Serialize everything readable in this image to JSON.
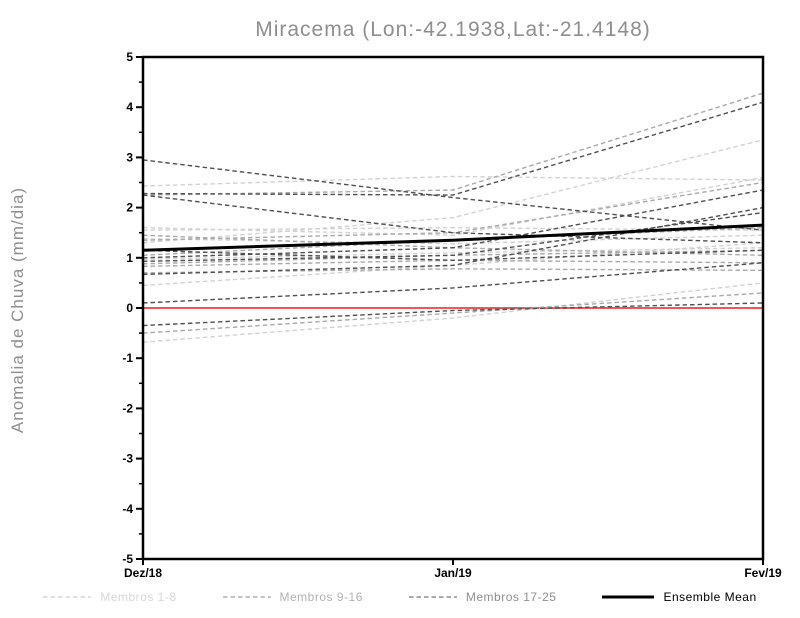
{
  "chart_data": {
    "type": "line",
    "title": "Miracema (Lon:-42.1938,Lat:-21.4148)",
    "ylabel": "Anomalia de Chuva (mm/dia)",
    "xlabel": "",
    "x_categories": [
      "Dez/18",
      "Jan/19",
      "Fev/19"
    ],
    "ylim": [
      -5,
      5
    ],
    "y_major_tick_step": 1,
    "y_minor_tick_step": 0.5,
    "grid": "off",
    "legend_position": "bottom",
    "frame_color": "#000000",
    "tick_label_color": "#000000",
    "title_color": "#8e8e8e",
    "zero_line": {
      "y": 0,
      "color": "#f25555"
    },
    "groups": [
      {
        "name": "Membros 1-8",
        "plot_color": "#d2d2d2",
        "legend_color": "#d7d7d7",
        "style": "dashed"
      },
      {
        "name": "Membros 9-16",
        "plot_color": "#a9a9a9",
        "legend_color": "#b2b2b2",
        "style": "dashed"
      },
      {
        "name": "Membros 17-25",
        "plot_color": "#4f4f4f",
        "legend_color": "#8f8f8f",
        "style": "dashed"
      },
      {
        "name": "Ensemble Mean",
        "plot_color": "#000000",
        "legend_color": "#000000",
        "style": "solid"
      }
    ],
    "series": [
      {
        "group": 0,
        "values": [
          2.43,
          2.62,
          2.55
        ]
      },
      {
        "group": 0,
        "values": [
          1.6,
          1.45,
          2.6
        ]
      },
      {
        "group": 0,
        "values": [
          -0.68,
          -0.2,
          0.5
        ]
      },
      {
        "group": 0,
        "values": [
          0.45,
          0.85,
          1.3
        ]
      },
      {
        "group": 0,
        "values": [
          1.55,
          1.6,
          1.55
        ]
      },
      {
        "group": 0,
        "values": [
          1.3,
          1.8,
          3.35
        ]
      },
      {
        "group": 0,
        "values": [
          0.97,
          1.1,
          1.2
        ]
      },
      {
        "group": 0,
        "values": [
          1.38,
          1.28,
          1.45
        ]
      },
      {
        "group": 1,
        "values": [
          -0.5,
          -0.1,
          0.3
        ]
      },
      {
        "group": 1,
        "values": [
          0.88,
          1.05,
          1.15
        ]
      },
      {
        "group": 1,
        "values": [
          1.45,
          1.2,
          1.05
        ]
      },
      {
        "group": 1,
        "values": [
          2.25,
          2.35,
          4.28
        ]
      },
      {
        "group": 1,
        "values": [
          1.05,
          1.35,
          1.6
        ]
      },
      {
        "group": 1,
        "values": [
          0.83,
          0.95,
          0.9
        ]
      },
      {
        "group": 1,
        "values": [
          1.35,
          1.5,
          2.5
        ]
      },
      {
        "group": 1,
        "values": [
          0.7,
          0.78,
          0.75
        ]
      },
      {
        "group": 2,
        "values": [
          2.95,
          2.2,
          1.55
        ]
      },
      {
        "group": 2,
        "values": [
          2.28,
          2.25,
          4.1
        ]
      },
      {
        "group": 2,
        "values": [
          0.1,
          0.4,
          0.9
        ]
      },
      {
        "group": 2,
        "values": [
          2.25,
          1.5,
          1.3
        ]
      },
      {
        "group": 2,
        "values": [
          0.93,
          1.05,
          1.9
        ]
      },
      {
        "group": 2,
        "values": [
          0.67,
          0.85,
          2.0
        ]
      },
      {
        "group": 2,
        "values": [
          -0.35,
          -0.05,
          0.1
        ]
      },
      {
        "group": 2,
        "values": [
          1.0,
          1.2,
          2.35
        ]
      },
      {
        "group": 2,
        "values": [
          1.15,
          0.95,
          1.15
        ]
      },
      {
        "group": 3,
        "values": [
          1.15,
          1.35,
          1.65
        ]
      }
    ]
  }
}
